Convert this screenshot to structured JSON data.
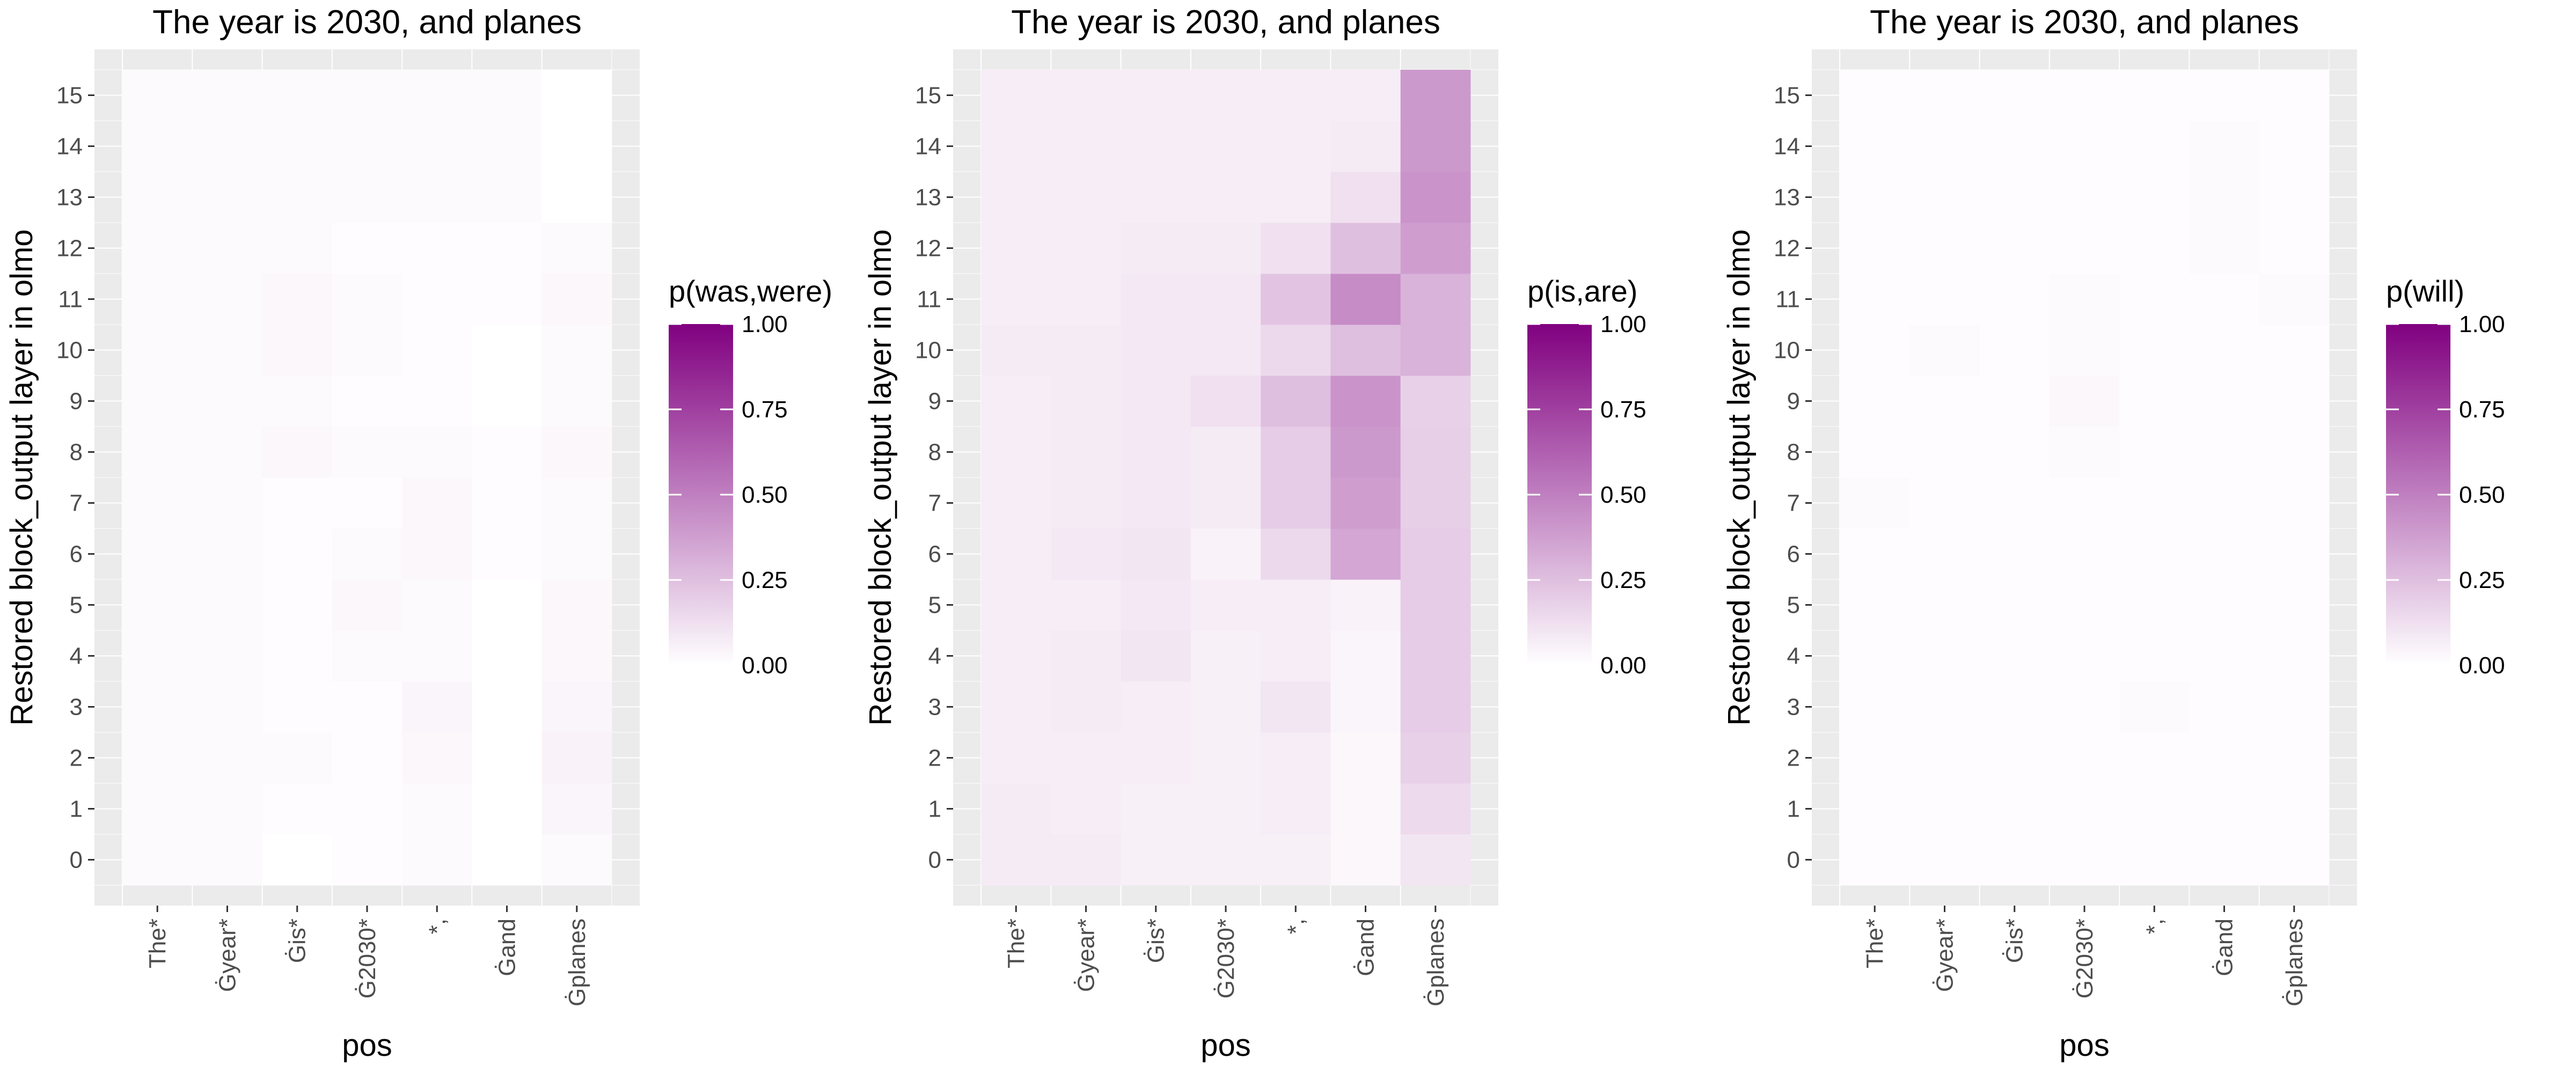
{
  "chart_data": [
    {
      "type": "heatmap",
      "title": "The year is 2030, and planes",
      "xlabel": "pos",
      "ylabel": "Restored block_output layer in olmo",
      "x_categories": [
        "The*",
        "Ġyear*",
        "Ġis*",
        "Ġ2030*",
        "*,",
        "Ġand",
        "Ġplanes"
      ],
      "y_categories": [
        "0",
        "1",
        "2",
        "3",
        "4",
        "5",
        "6",
        "7",
        "8",
        "9",
        "10",
        "11",
        "12",
        "13",
        "14",
        "15"
      ],
      "legend_title": "p(was,were)",
      "legend_ticks": [
        "1.00",
        "0.75",
        "0.50",
        "0.25",
        "0.00"
      ],
      "scale": {
        "min": 0,
        "max": 1,
        "low_color": "#ffffff",
        "high_color": "#800080"
      },
      "grid": true,
      "values": [
        [
          0.02,
          0.02,
          0.0,
          0.01,
          0.02,
          0.0,
          0.02
        ],
        [
          0.02,
          0.02,
          0.01,
          0.01,
          0.02,
          0.0,
          0.04
        ],
        [
          0.02,
          0.02,
          0.02,
          0.01,
          0.03,
          0.0,
          0.05
        ],
        [
          0.02,
          0.02,
          0.01,
          0.01,
          0.04,
          0.0,
          0.04
        ],
        [
          0.02,
          0.02,
          0.01,
          0.02,
          0.02,
          0.0,
          0.03
        ],
        [
          0.02,
          0.02,
          0.01,
          0.03,
          0.02,
          0.0,
          0.03
        ],
        [
          0.02,
          0.02,
          0.01,
          0.02,
          0.03,
          0.01,
          0.02
        ],
        [
          0.02,
          0.02,
          0.01,
          0.01,
          0.03,
          0.01,
          0.02
        ],
        [
          0.02,
          0.02,
          0.03,
          0.02,
          0.02,
          0.01,
          0.03
        ],
        [
          0.02,
          0.02,
          0.02,
          0.01,
          0.01,
          0.0,
          0.02
        ],
        [
          0.02,
          0.02,
          0.03,
          0.02,
          0.01,
          0.0,
          0.02
        ],
        [
          0.02,
          0.02,
          0.03,
          0.02,
          0.01,
          0.01,
          0.03
        ],
        [
          0.02,
          0.02,
          0.02,
          0.01,
          0.01,
          0.01,
          0.02
        ],
        [
          0.02,
          0.02,
          0.02,
          0.02,
          0.02,
          0.02,
          0.0
        ],
        [
          0.02,
          0.02,
          0.02,
          0.02,
          0.02,
          0.02,
          0.0
        ],
        [
          0.02,
          0.02,
          0.02,
          0.02,
          0.02,
          0.02,
          0.0
        ]
      ]
    },
    {
      "type": "heatmap",
      "title": "The year is 2030, and planes",
      "xlabel": "pos",
      "ylabel": "Restored block_output layer in olmo",
      "x_categories": [
        "The*",
        "Ġyear*",
        "Ġis*",
        "Ġ2030*",
        "*,",
        "Ġand",
        "Ġplanes"
      ],
      "y_categories": [
        "0",
        "1",
        "2",
        "3",
        "4",
        "5",
        "6",
        "7",
        "8",
        "9",
        "10",
        "11",
        "12",
        "13",
        "14",
        "15"
      ],
      "legend_title": "p(is,are)",
      "legend_ticks": [
        "1.00",
        "0.75",
        "0.50",
        "0.25",
        "0.00"
      ],
      "scale": {
        "min": 0,
        "max": 1,
        "low_color": "#ffffff",
        "high_color": "#800080"
      },
      "grid": true,
      "values": [
        [
          0.08,
          0.08,
          0.06,
          0.06,
          0.06,
          0.03,
          0.1
        ],
        [
          0.08,
          0.07,
          0.06,
          0.06,
          0.07,
          0.03,
          0.14
        ],
        [
          0.07,
          0.07,
          0.07,
          0.06,
          0.07,
          0.03,
          0.18
        ],
        [
          0.07,
          0.08,
          0.07,
          0.06,
          0.1,
          0.04,
          0.2
        ],
        [
          0.07,
          0.08,
          0.1,
          0.06,
          0.07,
          0.04,
          0.2
        ],
        [
          0.07,
          0.07,
          0.09,
          0.07,
          0.07,
          0.05,
          0.2
        ],
        [
          0.07,
          0.09,
          0.1,
          0.05,
          0.15,
          0.35,
          0.2
        ],
        [
          0.07,
          0.08,
          0.09,
          0.08,
          0.2,
          0.38,
          0.19
        ],
        [
          0.07,
          0.08,
          0.09,
          0.08,
          0.2,
          0.4,
          0.19
        ],
        [
          0.07,
          0.08,
          0.09,
          0.12,
          0.25,
          0.42,
          0.18
        ],
        [
          0.08,
          0.08,
          0.09,
          0.09,
          0.15,
          0.25,
          0.3
        ],
        [
          0.07,
          0.07,
          0.09,
          0.09,
          0.23,
          0.45,
          0.3
        ],
        [
          0.07,
          0.07,
          0.08,
          0.08,
          0.12,
          0.25,
          0.38
        ],
        [
          0.07,
          0.07,
          0.07,
          0.07,
          0.07,
          0.12,
          0.42
        ],
        [
          0.07,
          0.07,
          0.07,
          0.07,
          0.07,
          0.08,
          0.4
        ],
        [
          0.07,
          0.07,
          0.07,
          0.07,
          0.07,
          0.07,
          0.4
        ]
      ]
    },
    {
      "type": "heatmap",
      "title": "The year is 2030, and planes",
      "xlabel": "pos",
      "ylabel": "Restored block_output layer in olmo",
      "x_categories": [
        "The*",
        "Ġyear*",
        "Ġis*",
        "Ġ2030*",
        "*,",
        "Ġand",
        "Ġplanes"
      ],
      "y_categories": [
        "0",
        "1",
        "2",
        "3",
        "4",
        "5",
        "6",
        "7",
        "8",
        "9",
        "10",
        "11",
        "12",
        "13",
        "14",
        "15"
      ],
      "legend_title": "p(will)",
      "legend_ticks": [
        "1.00",
        "0.75",
        "0.50",
        "0.25",
        "0.00"
      ],
      "scale": {
        "min": 0,
        "max": 1,
        "low_color": "#ffffff",
        "high_color": "#800080"
      },
      "grid": true,
      "values": [
        [
          0.01,
          0.01,
          0.01,
          0.01,
          0.01,
          0.01,
          0.01
        ],
        [
          0.01,
          0.01,
          0.01,
          0.01,
          0.01,
          0.01,
          0.01
        ],
        [
          0.01,
          0.01,
          0.01,
          0.01,
          0.01,
          0.01,
          0.01
        ],
        [
          0.01,
          0.01,
          0.01,
          0.01,
          0.02,
          0.01,
          0.01
        ],
        [
          0.01,
          0.01,
          0.01,
          0.01,
          0.01,
          0.01,
          0.01
        ],
        [
          0.01,
          0.01,
          0.01,
          0.01,
          0.01,
          0.01,
          0.01
        ],
        [
          0.01,
          0.01,
          0.01,
          0.01,
          0.01,
          0.01,
          0.01
        ],
        [
          0.02,
          0.01,
          0.01,
          0.01,
          0.01,
          0.01,
          0.01
        ],
        [
          0.01,
          0.01,
          0.01,
          0.02,
          0.01,
          0.01,
          0.01
        ],
        [
          0.01,
          0.01,
          0.01,
          0.03,
          0.01,
          0.01,
          0.01
        ],
        [
          0.01,
          0.02,
          0.01,
          0.02,
          0.01,
          0.01,
          0.01
        ],
        [
          0.01,
          0.01,
          0.01,
          0.02,
          0.01,
          0.01,
          0.02
        ],
        [
          0.01,
          0.01,
          0.01,
          0.01,
          0.01,
          0.02,
          0.01
        ],
        [
          0.01,
          0.01,
          0.01,
          0.01,
          0.01,
          0.02,
          0.01
        ],
        [
          0.01,
          0.01,
          0.01,
          0.01,
          0.01,
          0.02,
          0.01
        ],
        [
          0.01,
          0.01,
          0.01,
          0.01,
          0.01,
          0.01,
          0.01
        ]
      ]
    }
  ]
}
